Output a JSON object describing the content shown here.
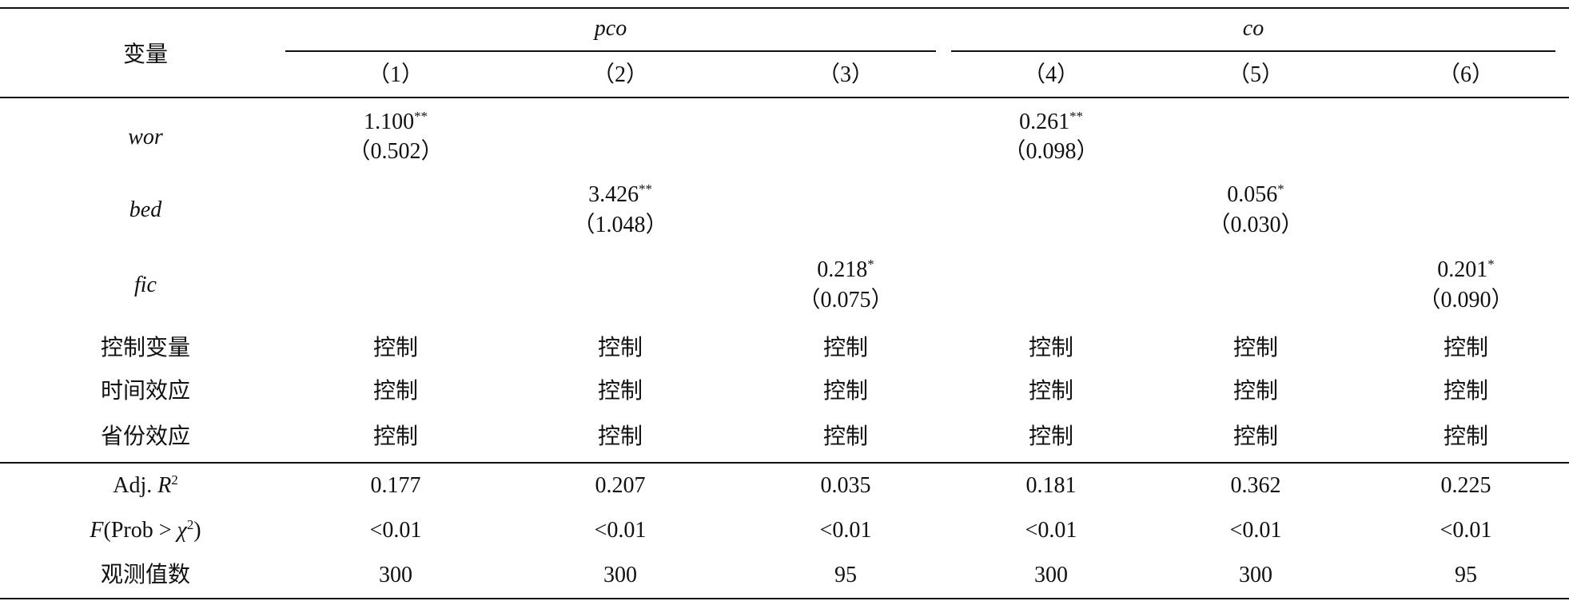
{
  "header": {
    "variable_label": "变量",
    "groups": [
      "pco",
      "co"
    ],
    "columns": [
      "（1）",
      "（2）",
      "（3）",
      "（4）",
      "（5）",
      "（6）"
    ]
  },
  "coefficient_rows": [
    {
      "label": "wor",
      "cells": [
        {
          "coef": "1.100",
          "stars": "**",
          "se": "（0.502）"
        },
        null,
        null,
        {
          "coef": "0.261",
          "stars": "**",
          "se": "（0.098）"
        },
        null,
        null
      ]
    },
    {
      "label": "bed",
      "cells": [
        null,
        {
          "coef": "3.426",
          "stars": "**",
          "se": "（1.048）"
        },
        null,
        null,
        {
          "coef": "0.056",
          "stars": "*",
          "se": "（0.030）"
        },
        null
      ]
    },
    {
      "label": "fic",
      "cells": [
        null,
        null,
        {
          "coef": "0.218",
          "stars": "*",
          "se": "（0.075）"
        },
        null,
        null,
        {
          "coef": "0.201",
          "stars": "*",
          "se": "（0.090）"
        }
      ]
    }
  ],
  "control_rows": [
    {
      "label": "控制变量",
      "cells": [
        "控制",
        "控制",
        "控制",
        "控制",
        "控制",
        "控制"
      ]
    },
    {
      "label": "时间效应",
      "cells": [
        "控制",
        "控制",
        "控制",
        "控制",
        "控制",
        "控制"
      ]
    },
    {
      "label": "省份效应",
      "cells": [
        "控制",
        "控制",
        "控制",
        "控制",
        "控制",
        "控制"
      ]
    }
  ],
  "stat_rows": [
    {
      "label": [
        {
          "text": "Adj. "
        },
        {
          "text": "R",
          "italic": true
        },
        {
          "text": "2",
          "sup": true
        }
      ],
      "cells": [
        "0.177",
        "0.207",
        "0.035",
        "0.181",
        "0.362",
        "0.225"
      ]
    },
    {
      "label": [
        {
          "text": "F",
          "italic": true
        },
        {
          "text": "(Prob > "
        },
        {
          "text": "χ",
          "italic": true
        },
        {
          "text": "2",
          "sup": true
        },
        {
          "text": ")"
        }
      ],
      "cells": [
        "<0.01",
        "<0.01",
        "<0.01",
        "<0.01",
        "<0.01",
        "<0.01"
      ]
    },
    {
      "label": [
        {
          "text": "观测值数"
        }
      ],
      "cells": [
        "300",
        "300",
        "95",
        "300",
        "300",
        "95"
      ]
    }
  ]
}
